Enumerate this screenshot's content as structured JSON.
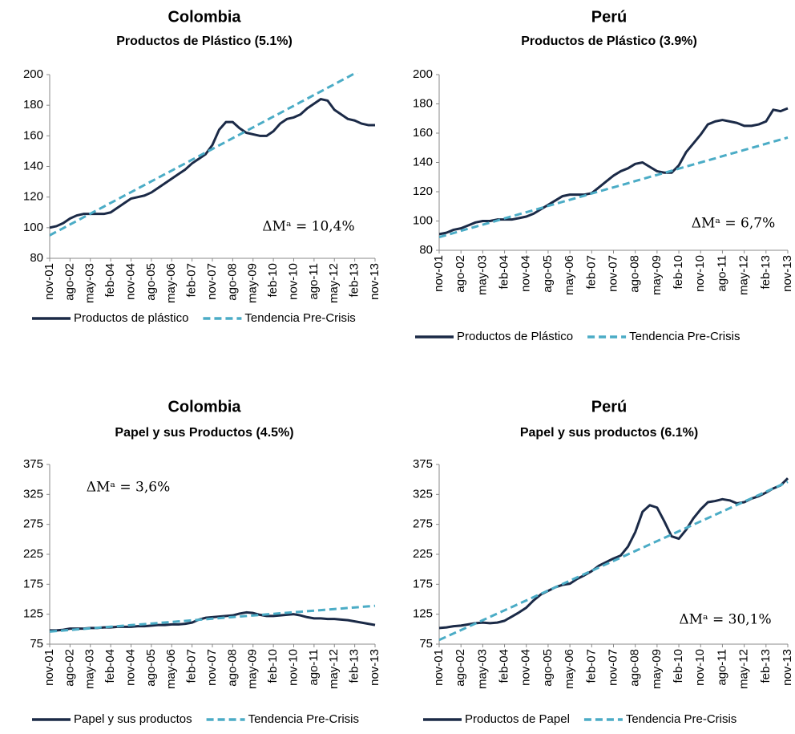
{
  "chart_data": [
    {
      "type": "line",
      "title": "Colombia",
      "subtitle": "Productos de Plástico (5.1%)",
      "annotation": "ΔMᵃ = 10,4%",
      "categories": [
        "nov-01",
        null,
        null,
        "ago-02",
        null,
        null,
        "may-03",
        null,
        null,
        "feb-04",
        null,
        null,
        "nov-04",
        null,
        null,
        "ago-05",
        null,
        null,
        "may-06",
        null,
        null,
        "feb-07",
        null,
        null,
        "nov-07",
        null,
        null,
        "ago-08",
        null,
        null,
        "may-09",
        null,
        null,
        "feb-10",
        null,
        null,
        "nov-10",
        null,
        null,
        "ago-11",
        null,
        null,
        "may-12",
        null,
        null,
        "feb-13",
        null,
        null,
        "nov-13"
      ],
      "ylim": [
        80,
        200
      ],
      "yticks": [
        80,
        100,
        120,
        140,
        160,
        180,
        200
      ],
      "series": [
        {
          "name": "Productos de plástico",
          "color": "#1b2a47",
          "dashed": false,
          "values": [
            100,
            101,
            103,
            106,
            108,
            109,
            109,
            109,
            109,
            110,
            113,
            116,
            119,
            120,
            121,
            123,
            126,
            129,
            132,
            135,
            138,
            142,
            145,
            148,
            154,
            164,
            169,
            169,
            165,
            162,
            161,
            160,
            160,
            163,
            168,
            171,
            172,
            174,
            178,
            181,
            184,
            183,
            177,
            174,
            171,
            170,
            168,
            167,
            167
          ]
        },
        {
          "name": "Tendencia Pre-Crisis",
          "color": "#4bacc6",
          "dashed": true,
          "values": [
            95,
            97.4,
            99.7,
            102.1,
            104.4,
            106.8,
            109.1,
            111.5,
            113.8,
            116.2,
            118.5,
            120.9,
            123.2,
            125.6,
            127.9,
            130.3,
            132.6,
            135,
            137.3,
            139.7,
            142,
            144.4,
            146.7,
            149.1,
            151.4,
            153.8,
            156.1,
            158.5,
            160.8,
            163.2,
            165.5,
            167.9,
            170.2,
            172.6,
            174.9,
            177.3,
            179.6,
            182,
            184.3,
            186.7,
            189,
            191.4,
            193.7,
            196.1,
            198.4,
            200.8,
            203.1,
            205.5,
            207.8
          ]
        }
      ]
    },
    {
      "type": "line",
      "title": "Perú",
      "subtitle": "Productos de Plástico (3.9%)",
      "annotation": "ΔMᵃ = 6,7%",
      "categories": [
        "nov-01",
        null,
        null,
        "ago-02",
        null,
        null,
        "may-03",
        null,
        null,
        "feb-04",
        null,
        null,
        "nov-04",
        null,
        null,
        "ago-05",
        null,
        null,
        "may-06",
        null,
        null,
        "feb-07",
        null,
        null,
        "nov-07",
        null,
        null,
        "ago-08",
        null,
        null,
        "may-09",
        null,
        null,
        "feb-10",
        null,
        null,
        "nov-10",
        null,
        null,
        "ago-11",
        null,
        null,
        "may-12",
        null,
        null,
        "feb-13",
        null,
        null,
        "nov-13"
      ],
      "ylim": [
        80,
        200
      ],
      "yticks": [
        80,
        100,
        120,
        140,
        160,
        180,
        200
      ],
      "series": [
        {
          "name": "Productos de Plástico",
          "color": "#1b2a47",
          "dashed": false,
          "values": [
            91,
            92,
            94,
            95,
            97,
            99,
            100,
            100,
            101,
            101,
            101,
            102,
            103,
            105,
            108,
            111,
            114,
            117,
            118,
            118,
            118,
            119,
            123,
            127,
            131,
            134,
            136,
            139,
            140,
            137,
            134,
            133,
            133,
            138,
            147,
            153,
            159,
            166,
            168,
            169,
            168,
            167,
            165,
            165,
            166,
            168,
            176,
            175,
            177
          ]
        },
        {
          "name": "Tendencia Pre-Crisis",
          "color": "#4bacc6",
          "dashed": true,
          "values": [
            89,
            90.4,
            91.8,
            93.3,
            94.7,
            96.1,
            97.5,
            98.9,
            100.3,
            101.8,
            103.2,
            104.6,
            106,
            107.4,
            108.8,
            110.3,
            111.7,
            113.1,
            114.5,
            115.9,
            117.3,
            118.8,
            120.2,
            121.6,
            123,
            124.4,
            125.8,
            127.3,
            128.7,
            130.1,
            131.5,
            132.9,
            134.3,
            135.8,
            137.2,
            138.6,
            140,
            141.4,
            142.8,
            144.3,
            145.7,
            147.1,
            148.5,
            149.9,
            151.3,
            152.8,
            154.2,
            155.6,
            157
          ]
        }
      ]
    },
    {
      "type": "line",
      "title": "Colombia",
      "subtitle": "Papel y sus Productos (4.5%)",
      "annotation": "ΔMᵃ = 3,6%",
      "categories": [
        "nov-01",
        null,
        null,
        "ago-02",
        null,
        null,
        "may-03",
        null,
        null,
        "feb-04",
        null,
        null,
        "nov-04",
        null,
        null,
        "ago-05",
        null,
        null,
        "may-06",
        null,
        null,
        "feb-07",
        null,
        null,
        "nov-07",
        null,
        null,
        "ago-08",
        null,
        null,
        "may-09",
        null,
        null,
        "feb-10",
        null,
        null,
        "nov-10",
        null,
        null,
        "ago-11",
        null,
        null,
        "may-12",
        null,
        null,
        "feb-13",
        null,
        null,
        "nov-13"
      ],
      "ylim": [
        75,
        375
      ],
      "yticks": [
        75,
        125,
        175,
        225,
        275,
        325,
        375
      ],
      "series": [
        {
          "name": "Papel y sus productos",
          "color": "#1b2a47",
          "dashed": false,
          "values": [
            98,
            98,
            99,
            101,
            101,
            101,
            102,
            102,
            103,
            103,
            104,
            104,
            104,
            105,
            105,
            106,
            107,
            107,
            108,
            108,
            109,
            111,
            116,
            119,
            120,
            121,
            122,
            123,
            126,
            128,
            127,
            124,
            122,
            122,
            123,
            124,
            125,
            123,
            120,
            118,
            118,
            117,
            117,
            116,
            115,
            113,
            111,
            109,
            107
          ]
        },
        {
          "name": "Tendencia Pre-Crisis",
          "color": "#4bacc6",
          "dashed": true,
          "values": [
            96,
            96.9,
            97.8,
            98.7,
            99.6,
            100.5,
            101.4,
            102.3,
            103.2,
            104.1,
            105,
            105.9,
            106.8,
            107.6,
            108.5,
            109.4,
            110.3,
            111.2,
            112.1,
            113,
            113.9,
            114.8,
            115.7,
            116.6,
            117.5,
            118.4,
            119.3,
            120.2,
            121.1,
            122,
            122.9,
            123.8,
            124.7,
            125.6,
            126.5,
            127.4,
            128.3,
            129.1,
            130,
            130.9,
            131.8,
            132.7,
            133.6,
            134.5,
            135.4,
            136.3,
            137.2,
            138.1,
            139
          ]
        }
      ]
    },
    {
      "type": "line",
      "title": "Perú",
      "subtitle": "Papel y sus productos  (6.1%)",
      "annotation": "ΔMᵃ = 30,1%",
      "categories": [
        "nov-01",
        null,
        null,
        "ago-02",
        null,
        null,
        "may-03",
        null,
        null,
        "feb-04",
        null,
        null,
        "nov-04",
        null,
        null,
        "ago-05",
        null,
        null,
        "may-06",
        null,
        null,
        "feb-07",
        null,
        null,
        "nov-07",
        null,
        null,
        "ago-08",
        null,
        null,
        "may-09",
        null,
        null,
        "feb-10",
        null,
        null,
        "nov-10",
        null,
        null,
        "ago-11",
        null,
        null,
        "may-12",
        null,
        null,
        "feb-13",
        null,
        null,
        "nov-13"
      ],
      "ylim": [
        75,
        375
      ],
      "yticks": [
        75,
        125,
        175,
        225,
        275,
        325,
        375
      ],
      "series": [
        {
          "name": "Productos de Papel",
          "color": "#1b2a47",
          "dashed": false,
          "values": [
            102,
            103,
            105,
            106,
            108,
            110,
            111,
            110,
            111,
            114,
            121,
            128,
            136,
            148,
            158,
            164,
            170,
            174,
            176,
            184,
            190,
            197,
            206,
            212,
            218,
            223,
            238,
            262,
            296,
            307,
            303,
            280,
            255,
            251,
            266,
            285,
            300,
            312,
            314,
            317,
            315,
            310,
            312,
            318,
            322,
            328,
            335,
            340,
            352
          ]
        },
        {
          "name": "Tendencia Pre-Crisis",
          "color": "#4bacc6",
          "dashed": true,
          "values": [
            82,
            87.5,
            93,
            98.5,
            104,
            109.5,
            115,
            120.5,
            126,
            131.5,
            137,
            142.5,
            148,
            153.5,
            159,
            164.5,
            170,
            175.5,
            181,
            186.5,
            192,
            197.5,
            203,
            208.5,
            214,
            219.5,
            225,
            230.5,
            236,
            241.5,
            247,
            252.5,
            258,
            263.5,
            269,
            274.5,
            280,
            285.5,
            291,
            296.5,
            302,
            307.5,
            313,
            318.5,
            324,
            329.5,
            335,
            340.5,
            346
          ]
        }
      ]
    }
  ]
}
